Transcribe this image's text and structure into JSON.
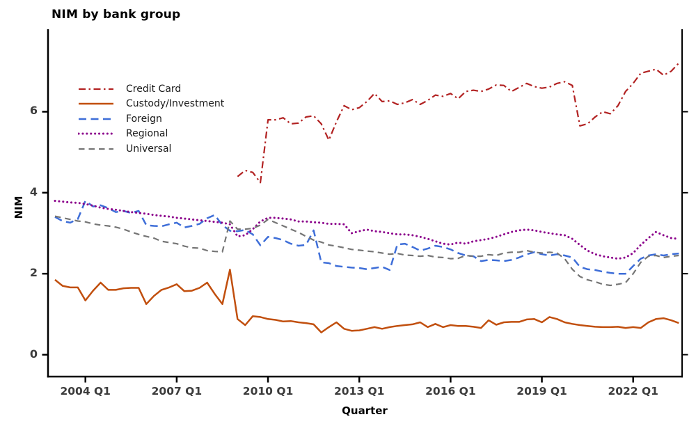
{
  "chart": {
    "title": "NIM by bank group",
    "xlabel": "Quarter",
    "ylabel": "NIM"
  },
  "chart_data": {
    "type": "line",
    "title": "NIM by bank group",
    "xlabel": "Quarter",
    "ylabel": "NIM",
    "x_unit": "quarter",
    "x_start": "2003 Q1",
    "x_end": "2023 Q3",
    "n_points": 83,
    "x_tick_labels": [
      "2004 Q1",
      "2007 Q1",
      "2010 Q1",
      "2013 Q1",
      "2016 Q1",
      "2019 Q1",
      "2022 Q1"
    ],
    "x_tick_indices": [
      4,
      16,
      28,
      40,
      52,
      64,
      76
    ],
    "y_tick_labels": [
      "0",
      "2",
      "4",
      "6"
    ],
    "y_ticks": [
      0,
      2,
      4,
      6
    ],
    "ylim": [
      -0.55,
      8.05
    ],
    "grid": false,
    "legend_position": "upper-left-inside",
    "series": [
      {
        "name": "Credit Card",
        "color": "#B22222",
        "style": "dashdot",
        "values": [
          null,
          null,
          null,
          null,
          null,
          null,
          null,
          null,
          null,
          null,
          null,
          null,
          null,
          null,
          null,
          null,
          null,
          null,
          null,
          null,
          null,
          null,
          null,
          null,
          4.4,
          4.55,
          4.5,
          4.25,
          5.8,
          5.8,
          5.85,
          5.7,
          5.72,
          5.87,
          5.9,
          5.7,
          5.3,
          5.75,
          6.15,
          6.05,
          6.1,
          6.25,
          6.45,
          6.25,
          6.27,
          6.18,
          6.22,
          6.3,
          6.18,
          6.28,
          6.41,
          6.38,
          6.45,
          6.32,
          6.5,
          6.53,
          6.5,
          6.56,
          6.66,
          6.65,
          6.5,
          6.6,
          6.7,
          6.62,
          6.58,
          6.61,
          6.7,
          6.74,
          6.65,
          5.65,
          5.7,
          5.87,
          6.0,
          5.95,
          6.15,
          6.5,
          6.7,
          6.95,
          7.0,
          7.05,
          6.9,
          7.0,
          7.2
        ]
      },
      {
        "name": "Custody/Investment",
        "color": "#C14F0E",
        "style": "solid",
        "values": [
          1.85,
          1.7,
          1.66,
          1.66,
          1.34,
          1.58,
          1.78,
          1.6,
          1.6,
          1.64,
          1.65,
          1.65,
          1.25,
          1.45,
          1.6,
          1.66,
          1.74,
          1.57,
          1.58,
          1.65,
          1.78,
          1.5,
          1.25,
          2.1,
          0.88,
          0.73,
          0.95,
          0.93,
          0.88,
          0.86,
          0.82,
          0.83,
          0.8,
          0.78,
          0.75,
          0.55,
          0.68,
          0.8,
          0.64,
          0.59,
          0.6,
          0.64,
          0.68,
          0.64,
          0.68,
          0.71,
          0.73,
          0.75,
          0.8,
          0.68,
          0.76,
          0.68,
          0.73,
          0.71,
          0.71,
          0.69,
          0.66,
          0.85,
          0.74,
          0.8,
          0.81,
          0.81,
          0.87,
          0.88,
          0.8,
          0.93,
          0.88,
          0.8,
          0.76,
          0.73,
          0.71,
          0.69,
          0.68,
          0.68,
          0.69,
          0.66,
          0.68,
          0.66,
          0.8,
          0.88,
          0.9,
          0.85,
          0.78
        ]
      },
      {
        "name": "Foreign",
        "color": "#3E6ED8",
        "style": "long-dash",
        "values": [
          3.4,
          3.3,
          3.26,
          3.35,
          3.8,
          3.66,
          3.69,
          3.62,
          3.52,
          3.55,
          3.5,
          3.55,
          3.2,
          3.18,
          3.17,
          3.22,
          3.26,
          3.14,
          3.18,
          3.23,
          3.37,
          3.45,
          3.2,
          3.06,
          3.05,
          3.08,
          2.97,
          2.7,
          2.91,
          2.88,
          2.83,
          2.74,
          2.69,
          2.71,
          3.07,
          2.28,
          2.26,
          2.19,
          2.17,
          2.15,
          2.14,
          2.11,
          2.14,
          2.17,
          2.09,
          2.72,
          2.74,
          2.66,
          2.57,
          2.62,
          2.69,
          2.66,
          2.6,
          2.51,
          2.45,
          2.43,
          2.31,
          2.34,
          2.33,
          2.31,
          2.34,
          2.4,
          2.48,
          2.53,
          2.48,
          2.45,
          2.48,
          2.45,
          2.4,
          2.17,
          2.11,
          2.09,
          2.05,
          2.02,
          2.0,
          2.0,
          2.19,
          2.37,
          2.45,
          2.48,
          2.45,
          2.48,
          2.5
        ]
      },
      {
        "name": "Regional",
        "color": "#8B008B",
        "style": "dotted",
        "values": [
          3.8,
          3.78,
          3.76,
          3.75,
          3.72,
          3.68,
          3.63,
          3.6,
          3.58,
          3.55,
          3.52,
          3.5,
          3.48,
          3.45,
          3.43,
          3.41,
          3.38,
          3.36,
          3.34,
          3.32,
          3.3,
          3.28,
          3.26,
          3.22,
          2.92,
          2.95,
          3.1,
          3.29,
          3.38,
          3.38,
          3.36,
          3.34,
          3.29,
          3.29,
          3.27,
          3.26,
          3.23,
          3.23,
          3.22,
          3.0,
          3.05,
          3.09,
          3.05,
          3.03,
          3.0,
          2.97,
          2.97,
          2.95,
          2.91,
          2.86,
          2.8,
          2.74,
          2.72,
          2.77,
          2.74,
          2.8,
          2.83,
          2.86,
          2.91,
          2.97,
          3.03,
          3.07,
          3.09,
          3.07,
          3.03,
          3.0,
          2.97,
          2.95,
          2.86,
          2.71,
          2.57,
          2.48,
          2.43,
          2.4,
          2.37,
          2.4,
          2.51,
          2.71,
          2.88,
          3.03,
          2.95,
          2.88,
          2.86
        ]
      },
      {
        "name": "Universal",
        "color": "#757575",
        "style": "dash",
        "values": [
          3.42,
          3.38,
          3.34,
          3.3,
          3.28,
          3.23,
          3.2,
          3.18,
          3.15,
          3.1,
          3.03,
          2.97,
          2.92,
          2.88,
          2.8,
          2.77,
          2.74,
          2.68,
          2.64,
          2.63,
          2.57,
          2.55,
          2.54,
          3.3,
          3.1,
          3.1,
          3.12,
          3.2,
          3.34,
          3.26,
          3.18,
          3.1,
          3.02,
          2.92,
          2.83,
          2.78,
          2.71,
          2.68,
          2.64,
          2.6,
          2.58,
          2.56,
          2.54,
          2.51,
          2.48,
          2.5,
          2.46,
          2.45,
          2.43,
          2.45,
          2.41,
          2.4,
          2.37,
          2.38,
          2.45,
          2.43,
          2.43,
          2.47,
          2.45,
          2.51,
          2.53,
          2.53,
          2.57,
          2.53,
          2.51,
          2.53,
          2.51,
          2.37,
          2.11,
          1.93,
          1.85,
          1.8,
          1.74,
          1.71,
          1.74,
          1.78,
          2.0,
          2.28,
          2.43,
          2.45,
          2.4,
          2.43,
          2.45
        ]
      }
    ]
  }
}
